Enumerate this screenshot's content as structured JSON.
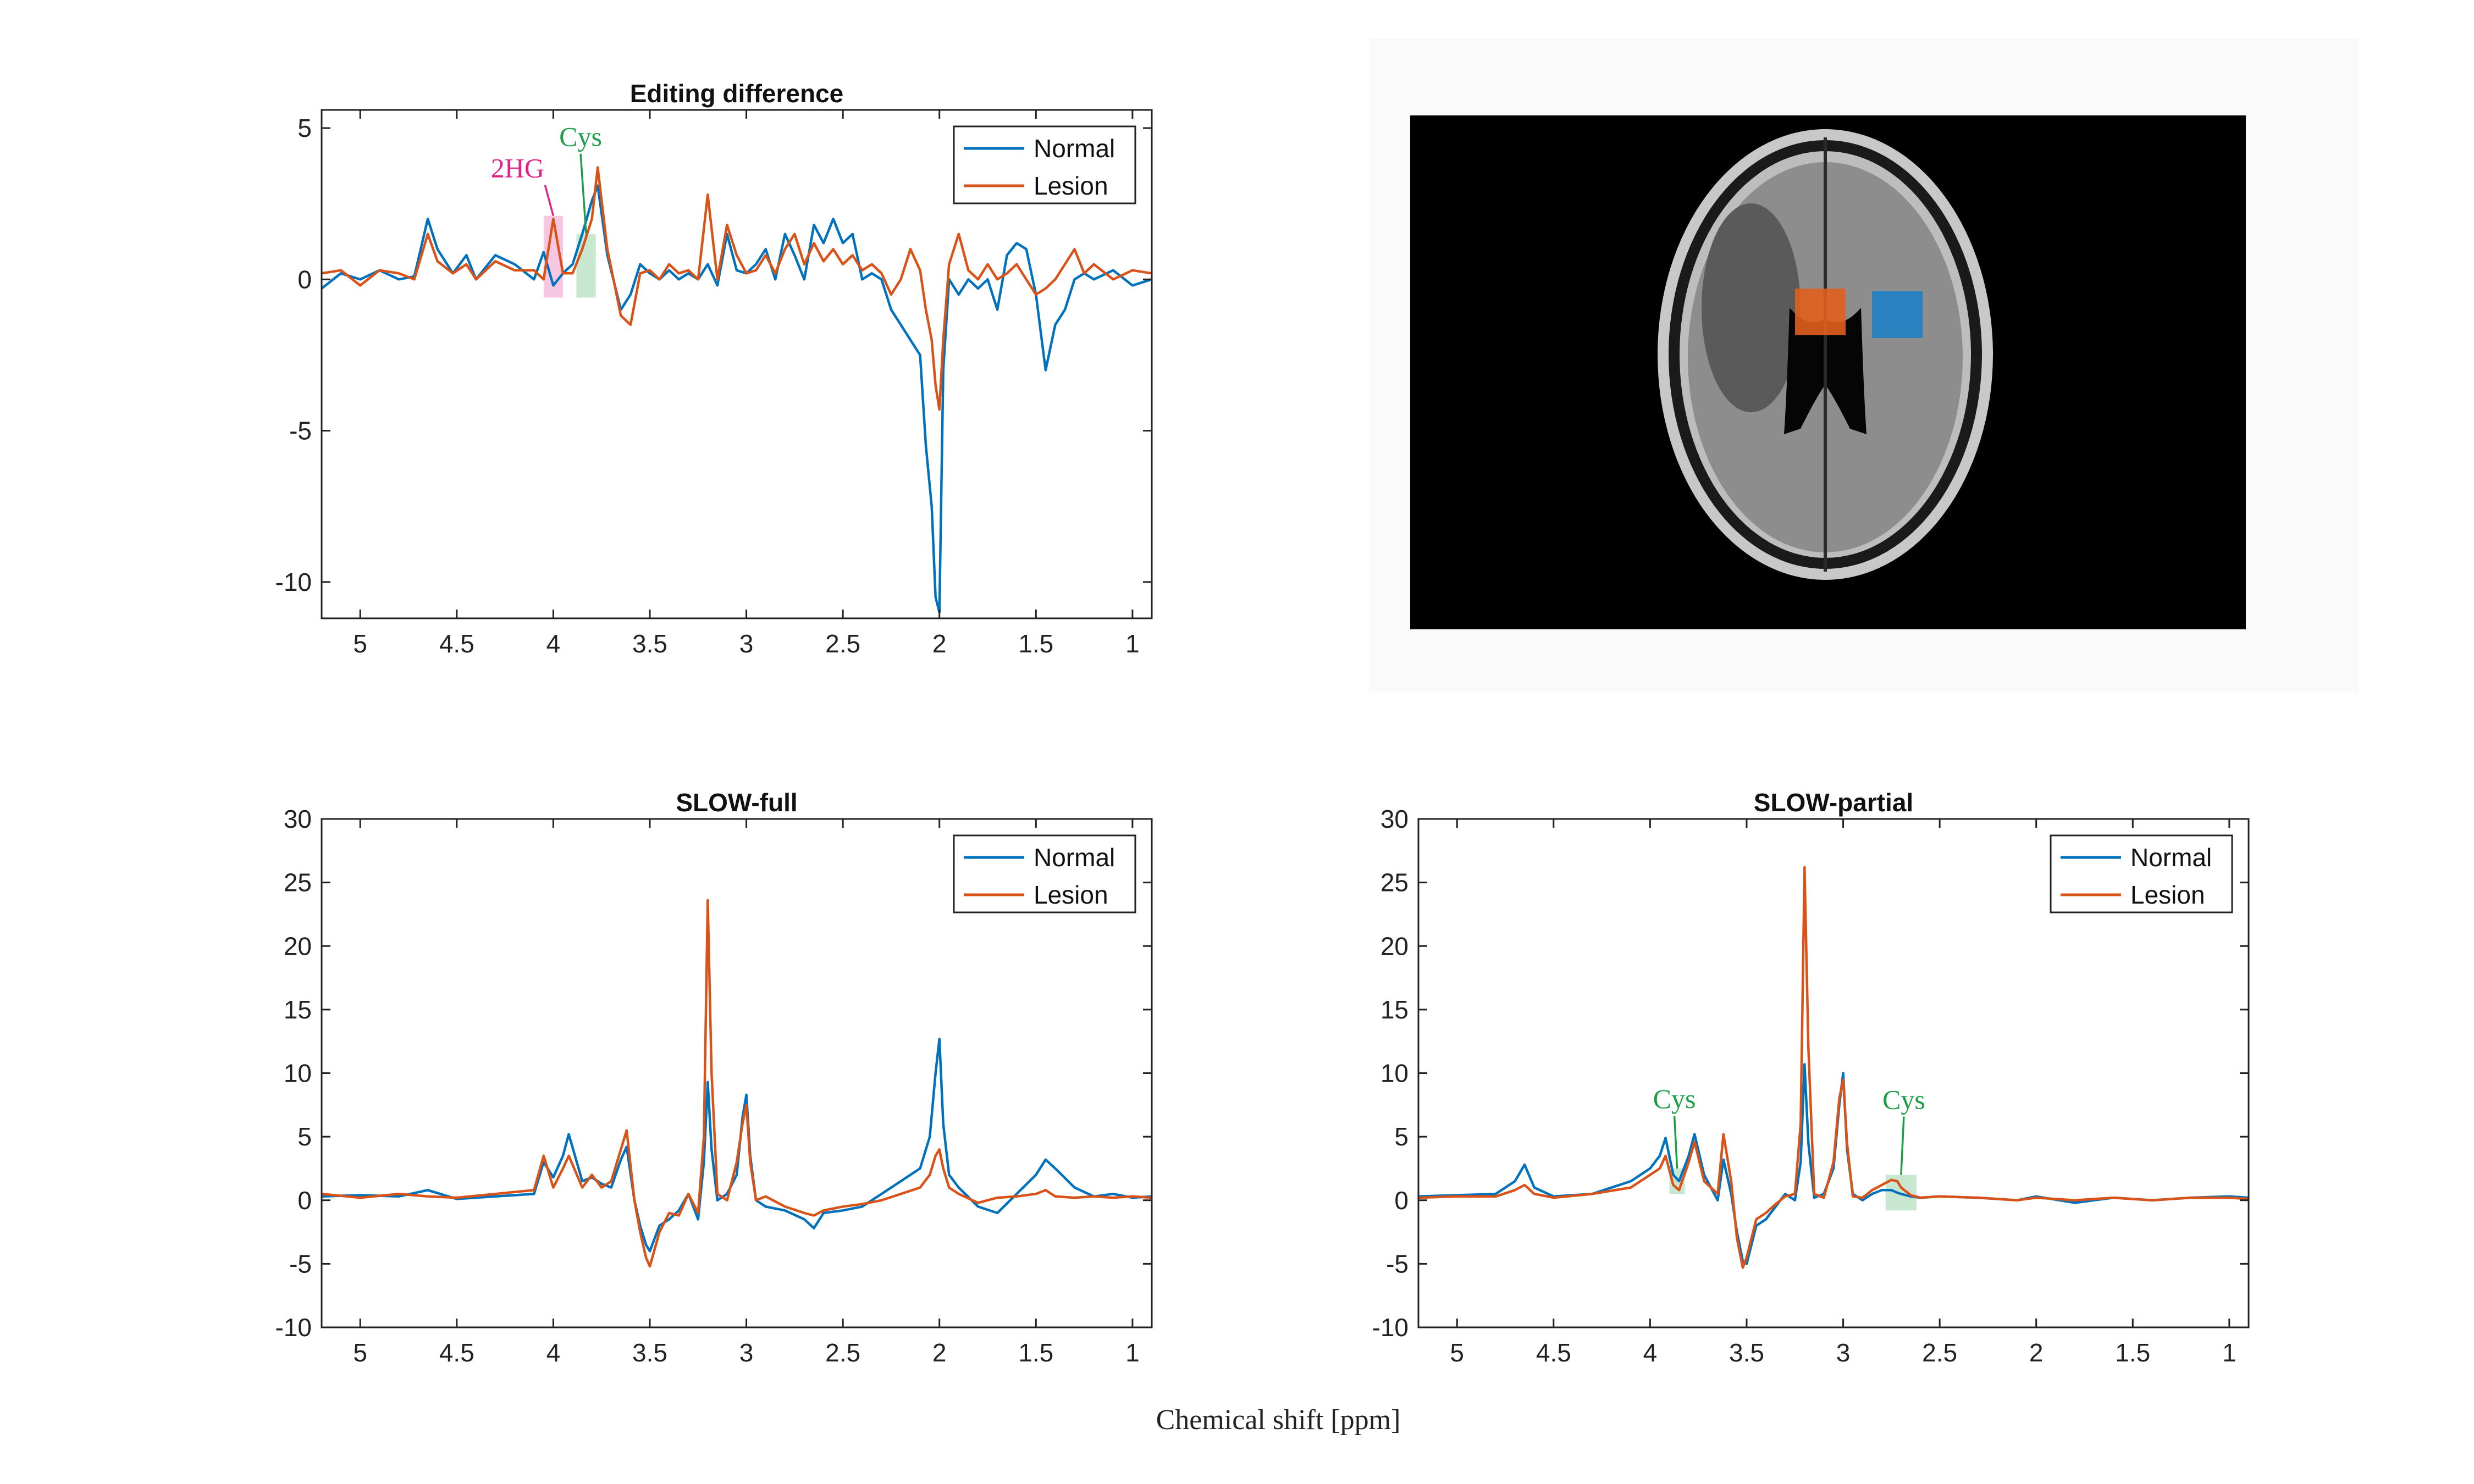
{
  "figure": {
    "xlabel": "Chemical shift [ppm]"
  },
  "colors": {
    "normal": "#0072BD",
    "lesion": "#D95319",
    "hg2": "#E0218A",
    "cys": "#1E9E48",
    "roi_lesion": "#E0601C",
    "roi_normal": "#1F7FC4"
  },
  "chart_data": [
    {
      "type": "line",
      "title": "Editing difference",
      "xlabel": "",
      "ylabel": "",
      "xlim": [
        5.2,
        0.9
      ],
      "ylim": [
        -11.2,
        5.6
      ],
      "xticks": [
        5,
        4.5,
        4,
        3.5,
        3,
        2.5,
        2,
        1.5,
        1
      ],
      "yticks": [
        5,
        0,
        -5,
        -10
      ],
      "grid": false,
      "legend": "top-right",
      "legend_entries": [
        "Normal",
        "Lesion"
      ],
      "series": [
        {
          "name": "Normal",
          "x": [
            5.2,
            5.1,
            5.0,
            4.9,
            4.8,
            4.72,
            4.65,
            4.6,
            4.52,
            4.45,
            4.4,
            4.3,
            4.2,
            4.1,
            4.05,
            4.0,
            3.95,
            3.9,
            3.85,
            3.8,
            3.77,
            3.72,
            3.65,
            3.6,
            3.55,
            3.5,
            3.45,
            3.4,
            3.35,
            3.3,
            3.25,
            3.2,
            3.15,
            3.1,
            3.05,
            3.0,
            2.95,
            2.9,
            2.85,
            2.8,
            2.75,
            2.7,
            2.65,
            2.6,
            2.55,
            2.5,
            2.45,
            2.4,
            2.35,
            2.3,
            2.25,
            2.2,
            2.15,
            2.1,
            2.07,
            2.04,
            2.02,
            2.0,
            1.98,
            1.95,
            1.9,
            1.85,
            1.8,
            1.75,
            1.7,
            1.65,
            1.6,
            1.55,
            1.5,
            1.45,
            1.4,
            1.35,
            1.3,
            1.25,
            1.2,
            1.1,
            1.0,
            0.9
          ],
          "y": [
            -0.3,
            0.2,
            0.0,
            0.3,
            0.0,
            0.1,
            2.0,
            1.0,
            0.2,
            0.8,
            0.0,
            0.8,
            0.5,
            0.0,
            0.9,
            -0.2,
            0.2,
            0.5,
            1.5,
            2.6,
            3.1,
            0.8,
            -1.0,
            -0.5,
            0.5,
            0.2,
            0.0,
            0.3,
            0.0,
            0.2,
            0.0,
            0.5,
            -0.2,
            1.5,
            0.3,
            0.2,
            0.5,
            1.0,
            0.0,
            1.5,
            0.8,
            0.0,
            1.8,
            1.2,
            2.0,
            1.2,
            1.5,
            0.0,
            0.2,
            0.0,
            -1.0,
            -1.5,
            -2.0,
            -2.5,
            -5.5,
            -7.5,
            -10.5,
            -11.0,
            -3.0,
            0.0,
            -0.5,
            0.0,
            -0.3,
            0.0,
            -1.0,
            0.8,
            1.2,
            1.0,
            -0.5,
            -3.0,
            -1.5,
            -1.0,
            0.0,
            0.2,
            0.0,
            0.3,
            -0.2,
            0.0
          ]
        },
        {
          "name": "Lesion",
          "x": [
            5.2,
            5.1,
            5.0,
            4.9,
            4.8,
            4.72,
            4.65,
            4.6,
            4.52,
            4.45,
            4.4,
            4.3,
            4.2,
            4.1,
            4.05,
            4.0,
            3.95,
            3.9,
            3.85,
            3.8,
            3.77,
            3.72,
            3.65,
            3.6,
            3.55,
            3.5,
            3.45,
            3.4,
            3.35,
            3.3,
            3.25,
            3.2,
            3.15,
            3.1,
            3.05,
            3.0,
            2.95,
            2.9,
            2.85,
            2.8,
            2.75,
            2.7,
            2.65,
            2.6,
            2.55,
            2.5,
            2.45,
            2.4,
            2.35,
            2.3,
            2.25,
            2.2,
            2.15,
            2.1,
            2.07,
            2.04,
            2.02,
            2.0,
            1.98,
            1.95,
            1.9,
            1.85,
            1.8,
            1.75,
            1.7,
            1.65,
            1.6,
            1.55,
            1.5,
            1.45,
            1.4,
            1.35,
            1.3,
            1.25,
            1.2,
            1.1,
            1.0,
            0.9
          ],
          "y": [
            0.2,
            0.3,
            -0.2,
            0.3,
            0.2,
            0.0,
            1.5,
            0.6,
            0.2,
            0.5,
            0.0,
            0.6,
            0.3,
            0.3,
            0.0,
            2.0,
            0.2,
            0.2,
            1.0,
            2.0,
            3.7,
            1.0,
            -1.2,
            -1.5,
            0.2,
            0.3,
            0.0,
            0.5,
            0.2,
            0.3,
            0.0,
            2.8,
            0.0,
            1.8,
            0.8,
            0.2,
            0.3,
            0.8,
            0.2,
            1.0,
            1.5,
            0.5,
            1.2,
            0.6,
            1.0,
            0.5,
            0.8,
            0.3,
            0.5,
            0.2,
            -0.5,
            0.0,
            1.0,
            0.3,
            -1.0,
            -2.0,
            -3.5,
            -4.3,
            -2.0,
            0.5,
            1.5,
            0.3,
            0.0,
            0.5,
            0.0,
            0.2,
            0.5,
            0.0,
            -0.5,
            -0.3,
            0.0,
            0.5,
            1.0,
            0.2,
            0.5,
            0.0,
            0.3,
            0.2
          ]
        }
      ],
      "highlights": [
        {
          "label": "2HG",
          "x": [
            4.05,
            3.95
          ],
          "y": [
            -0.6,
            2.1
          ],
          "color": "hg2"
        },
        {
          "label": "Cys",
          "x": [
            3.88,
            3.78
          ],
          "y": [
            -0.6,
            1.5
          ],
          "color": "cys"
        }
      ]
    },
    {
      "type": "line",
      "title": "SLOW-full",
      "xlabel": "",
      "ylabel": "",
      "xlim": [
        5.2,
        0.9
      ],
      "ylim": [
        -10,
        30
      ],
      "xticks": [
        5,
        4.5,
        4,
        3.5,
        3,
        2.5,
        2,
        1.5,
        1
      ],
      "yticks": [
        30,
        25,
        20,
        15,
        10,
        5,
        0,
        -5,
        -10
      ],
      "grid": false,
      "legend": "top-right",
      "legend_entries": [
        "Normal",
        "Lesion"
      ],
      "series": [
        {
          "name": "Normal",
          "x": [
            5.2,
            5.0,
            4.8,
            4.65,
            4.5,
            4.3,
            4.1,
            4.05,
            4.0,
            3.95,
            3.92,
            3.85,
            3.8,
            3.75,
            3.7,
            3.65,
            3.62,
            3.58,
            3.55,
            3.52,
            3.5,
            3.45,
            3.4,
            3.35,
            3.3,
            3.25,
            3.22,
            3.2,
            3.18,
            3.15,
            3.1,
            3.05,
            3.02,
            3.0,
            2.98,
            2.95,
            2.9,
            2.8,
            2.7,
            2.65,
            2.6,
            2.5,
            2.4,
            2.3,
            2.2,
            2.1,
            2.05,
            2.02,
            2.0,
            1.98,
            1.95,
            1.9,
            1.8,
            1.7,
            1.6,
            1.5,
            1.45,
            1.4,
            1.3,
            1.2,
            1.1,
            1.0,
            0.9
          ],
          "y": [
            0.3,
            0.4,
            0.3,
            0.8,
            0.1,
            0.3,
            0.5,
            3.0,
            1.8,
            3.5,
            5.2,
            1.5,
            1.8,
            1.3,
            1.0,
            3.2,
            4.2,
            0.0,
            -2.0,
            -3.5,
            -4.0,
            -2.0,
            -1.5,
            -0.8,
            0.5,
            -1.5,
            3.0,
            9.3,
            4.0,
            0.0,
            0.5,
            2.0,
            6.5,
            8.3,
            3.5,
            0.0,
            -0.5,
            -0.8,
            -1.5,
            -2.2,
            -1.0,
            -0.8,
            -0.5,
            0.5,
            1.5,
            2.5,
            5.0,
            10.0,
            12.7,
            6.0,
            2.0,
            1.0,
            -0.5,
            -1.0,
            0.5,
            2.0,
            3.2,
            2.5,
            1.0,
            0.3,
            0.5,
            0.2,
            0.3
          ]
        },
        {
          "name": "Lesion",
          "x": [
            5.2,
            5.0,
            4.8,
            4.65,
            4.5,
            4.3,
            4.1,
            4.05,
            4.0,
            3.95,
            3.92,
            3.85,
            3.8,
            3.75,
            3.7,
            3.65,
            3.62,
            3.58,
            3.55,
            3.52,
            3.5,
            3.45,
            3.4,
            3.35,
            3.3,
            3.25,
            3.22,
            3.2,
            3.18,
            3.15,
            3.1,
            3.05,
            3.02,
            3.0,
            2.98,
            2.95,
            2.9,
            2.8,
            2.7,
            2.65,
            2.6,
            2.5,
            2.4,
            2.3,
            2.2,
            2.1,
            2.05,
            2.02,
            2.0,
            1.98,
            1.95,
            1.9,
            1.8,
            1.7,
            1.6,
            1.5,
            1.45,
            1.4,
            1.3,
            1.2,
            1.1,
            1.0,
            0.9
          ],
          "y": [
            0.5,
            0.2,
            0.5,
            0.3,
            0.2,
            0.5,
            0.8,
            3.5,
            1.0,
            2.5,
            3.5,
            1.0,
            2.0,
            1.0,
            1.5,
            4.0,
            5.5,
            0.0,
            -2.5,
            -4.5,
            -5.2,
            -2.5,
            -1.0,
            -1.2,
            0.5,
            -1.0,
            5.0,
            23.6,
            10.0,
            0.5,
            0.0,
            3.0,
            6.0,
            7.5,
            3.0,
            0.0,
            0.3,
            -0.5,
            -1.0,
            -1.2,
            -0.8,
            -0.5,
            -0.3,
            0.0,
            0.5,
            1.0,
            2.0,
            3.5,
            4.0,
            2.5,
            1.0,
            0.5,
            -0.2,
            0.2,
            0.3,
            0.5,
            0.8,
            0.3,
            0.2,
            0.3,
            0.2,
            0.3,
            0.2
          ]
        }
      ],
      "highlights": []
    },
    {
      "type": "line",
      "title": "SLOW-partial",
      "xlabel": "",
      "ylabel": "",
      "xlim": [
        5.2,
        0.9
      ],
      "ylim": [
        -10,
        30
      ],
      "xticks": [
        5,
        4.5,
        4,
        3.5,
        3,
        2.5,
        2,
        1.5,
        1
      ],
      "yticks": [
        30,
        25,
        20,
        15,
        10,
        5,
        0,
        -5,
        -10
      ],
      "grid": false,
      "legend": "top-right",
      "legend_entries": [
        "Normal",
        "Lesion"
      ],
      "series": [
        {
          "name": "Normal",
          "x": [
            5.2,
            5.0,
            4.8,
            4.7,
            4.65,
            4.6,
            4.5,
            4.3,
            4.1,
            4.0,
            3.95,
            3.92,
            3.88,
            3.85,
            3.8,
            3.77,
            3.72,
            3.65,
            3.62,
            3.58,
            3.55,
            3.52,
            3.5,
            3.45,
            3.4,
            3.35,
            3.3,
            3.25,
            3.22,
            3.2,
            3.18,
            3.15,
            3.1,
            3.05,
            3.02,
            3.0,
            2.98,
            2.95,
            2.9,
            2.85,
            2.8,
            2.75,
            2.72,
            2.7,
            2.65,
            2.6,
            2.5,
            2.3,
            2.1,
            2.0,
            1.8,
            1.6,
            1.4,
            1.2,
            1.0,
            0.9
          ],
          "y": [
            0.3,
            0.4,
            0.5,
            1.5,
            2.8,
            1.0,
            0.3,
            0.5,
            1.5,
            2.5,
            3.5,
            4.9,
            2.0,
            1.5,
            3.5,
            5.2,
            2.0,
            0.0,
            3.2,
            0.5,
            -2.5,
            -4.8,
            -5.0,
            -2.0,
            -1.5,
            -0.5,
            0.5,
            0.0,
            3.0,
            10.7,
            4.5,
            0.2,
            0.5,
            2.5,
            7.5,
            10.0,
            4.0,
            0.5,
            0.0,
            0.5,
            0.8,
            0.8,
            0.6,
            0.5,
            0.3,
            0.2,
            0.3,
            0.2,
            0.0,
            0.3,
            -0.2,
            0.2,
            0.0,
            0.2,
            0.3,
            0.2
          ]
        },
        {
          "name": "Lesion",
          "x": [
            5.2,
            5.0,
            4.8,
            4.7,
            4.65,
            4.6,
            4.5,
            4.3,
            4.1,
            4.0,
            3.95,
            3.92,
            3.88,
            3.85,
            3.8,
            3.77,
            3.72,
            3.65,
            3.62,
            3.58,
            3.55,
            3.52,
            3.5,
            3.45,
            3.4,
            3.35,
            3.3,
            3.25,
            3.22,
            3.2,
            3.18,
            3.15,
            3.1,
            3.05,
            3.02,
            3.0,
            2.98,
            2.95,
            2.9,
            2.85,
            2.8,
            2.75,
            2.72,
            2.7,
            2.65,
            2.6,
            2.5,
            2.3,
            2.1,
            2.0,
            1.8,
            1.6,
            1.4,
            1.2,
            1.0,
            0.9
          ],
          "y": [
            0.2,
            0.3,
            0.3,
            0.8,
            1.2,
            0.5,
            0.2,
            0.5,
            1.0,
            2.0,
            2.5,
            3.5,
            1.2,
            0.8,
            3.0,
            4.6,
            1.5,
            0.5,
            5.2,
            1.5,
            -3.0,
            -5.3,
            -4.5,
            -1.5,
            -1.0,
            -0.3,
            0.3,
            0.5,
            6.0,
            26.2,
            12.0,
            0.5,
            0.2,
            3.0,
            8.0,
            9.5,
            4.5,
            0.3,
            0.2,
            0.8,
            1.2,
            1.6,
            1.5,
            1.0,
            0.4,
            0.2,
            0.3,
            0.2,
            0.0,
            0.2,
            0.0,
            0.2,
            0.0,
            0.2,
            0.2,
            0.1
          ]
        }
      ],
      "highlights": [
        {
          "label": "Cys",
          "x": [
            3.9,
            3.82
          ],
          "y": [
            0.5,
            2.5
          ],
          "color": "cys"
        },
        {
          "label": "Cys",
          "x": [
            2.78,
            2.62
          ],
          "y": [
            -0.8,
            2.0
          ],
          "color": "cys"
        }
      ]
    }
  ],
  "annotations": {
    "hg2_label": "2HG",
    "cys_label": "Cys"
  },
  "image": {
    "description_icon": "brain-mri-icon"
  }
}
